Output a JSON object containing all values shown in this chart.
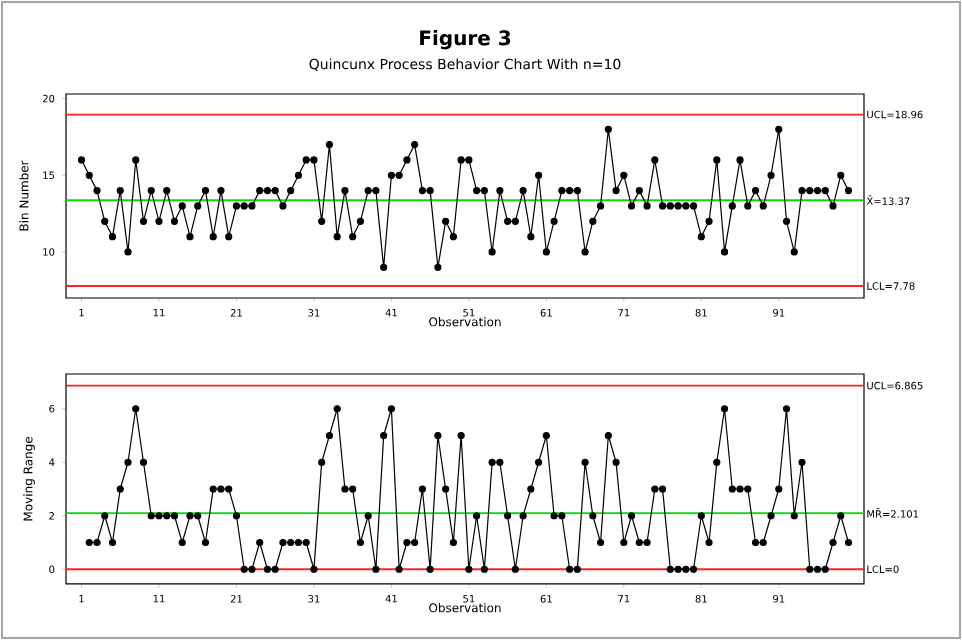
{
  "chart_data": [
    {
      "type": "line",
      "title": "Figure 3",
      "subtitle": "Quincunx Process Behavior Chart With n=10",
      "xlabel": "Observation",
      "ylabel": "Bin Number",
      "x": [
        1,
        2,
        3,
        4,
        5,
        6,
        7,
        8,
        9,
        10,
        11,
        12,
        13,
        14,
        15,
        16,
        17,
        18,
        19,
        20,
        21,
        22,
        23,
        24,
        25,
        26,
        27,
        28,
        29,
        30,
        31,
        32,
        33,
        34,
        35,
        36,
        37,
        38,
        39,
        40,
        41,
        42,
        43,
        44,
        45,
        46,
        47,
        48,
        49,
        50,
        51,
        52,
        53,
        54,
        55,
        56,
        57,
        58,
        59,
        60,
        61,
        62,
        63,
        64,
        65,
        66,
        67,
        68,
        69,
        70,
        71,
        72,
        73,
        74,
        75,
        76,
        77,
        78,
        79,
        80,
        81,
        82,
        83,
        84,
        85,
        86,
        87,
        88,
        89,
        90,
        91,
        92,
        93,
        94,
        95,
        96,
        97,
        98,
        99,
        100
      ],
      "values": [
        16,
        15,
        14,
        12,
        11,
        14,
        10,
        16,
        12,
        14,
        12,
        14,
        12,
        13,
        11,
        13,
        14,
        11,
        14,
        11,
        13,
        13,
        13,
        14,
        14,
        14,
        13,
        14,
        15,
        16,
        16,
        12,
        17,
        11,
        14,
        11,
        12,
        14,
        14,
        9,
        15,
        15,
        16,
        17,
        14,
        14,
        9,
        12,
        11,
        16,
        16,
        14,
        14,
        10,
        14,
        12,
        12,
        14,
        11,
        15,
        10,
        12,
        14,
        14,
        14,
        10,
        12,
        13,
        18,
        14,
        15,
        13,
        14,
        13,
        16,
        13,
        13,
        13,
        13,
        13,
        11,
        12,
        16,
        10,
        13,
        16,
        13,
        14,
        13,
        15,
        18,
        12,
        10,
        14,
        14,
        14,
        14,
        13,
        15,
        14
      ],
      "color": "#000000",
      "marker": "circle",
      "line_style": "solid",
      "xlim": [
        -1,
        102
      ],
      "ylim": [
        7,
        20.3
      ],
      "xticks": [
        1,
        11,
        21,
        31,
        41,
        51,
        61,
        71,
        81,
        91
      ],
      "yticks": [
        10,
        15,
        20
      ],
      "ref_lines": [
        {
          "axis": "y",
          "value": 18.96,
          "label": "UCL=18.96",
          "color": "#ff2020"
        },
        {
          "axis": "y",
          "value": 13.37,
          "label": "X̄=13.37",
          "color": "#00e000"
        },
        {
          "axis": "y",
          "value": 7.78,
          "label": "LCL=7.78",
          "color": "#ff2020"
        }
      ]
    },
    {
      "type": "line",
      "xlabel": "Observation",
      "ylabel": "Moving Range",
      "x": [
        2,
        3,
        4,
        5,
        6,
        7,
        8,
        9,
        10,
        11,
        12,
        13,
        14,
        15,
        16,
        17,
        18,
        19,
        20,
        21,
        22,
        23,
        24,
        25,
        26,
        27,
        28,
        29,
        30,
        31,
        32,
        33,
        34,
        35,
        36,
        37,
        38,
        39,
        40,
        41,
        42,
        43,
        44,
        45,
        46,
        47,
        48,
        49,
        50,
        51,
        52,
        53,
        54,
        55,
        56,
        57,
        58,
        59,
        60,
        61,
        62,
        63,
        64,
        65,
        66,
        67,
        68,
        69,
        70,
        71,
        72,
        73,
        74,
        75,
        76,
        77,
        78,
        79,
        80,
        81,
        82,
        83,
        84,
        85,
        86,
        87,
        88,
        89,
        90,
        91,
        92,
        93,
        94,
        95,
        96,
        97,
        98,
        99,
        100
      ],
      "values": [
        1,
        1,
        2,
        1,
        3,
        4,
        6,
        4,
        2,
        2,
        2,
        2,
        1,
        2,
        2,
        1,
        3,
        3,
        3,
        2,
        0,
        0,
        1,
        0,
        0,
        1,
        1,
        1,
        1,
        0,
        4,
        5,
        6,
        3,
        3,
        1,
        2,
        0,
        5,
        6,
        0,
        1,
        1,
        3,
        0,
        5,
        3,
        1,
        5,
        0,
        2,
        0,
        4,
        4,
        2,
        0,
        2,
        3,
        4,
        5,
        2,
        2,
        0,
        0,
        4,
        2,
        1,
        5,
        4,
        1,
        2,
        1,
        1,
        3,
        3,
        0,
        0,
        0,
        0,
        2,
        1,
        4,
        6,
        3,
        3,
        3,
        1,
        1,
        2,
        3,
        6,
        2,
        4,
        0,
        0,
        0,
        1,
        2,
        1
      ],
      "color": "#000000",
      "marker": "circle",
      "line_style": "solid",
      "xlim": [
        -1,
        102
      ],
      "ylim": [
        -0.55,
        7.3
      ],
      "xticks": [
        1,
        11,
        21,
        31,
        41,
        51,
        61,
        71,
        81,
        91
      ],
      "yticks": [
        0,
        2,
        4,
        6
      ],
      "ref_lines": [
        {
          "axis": "y",
          "value": 6.865,
          "label": "UCL=6.865",
          "color": "#ff2020"
        },
        {
          "axis": "y",
          "value": 2.101,
          "label": "MR̄=2.101",
          "color": "#00e000"
        },
        {
          "axis": "y",
          "value": 0,
          "label": "LCL=0",
          "color": "#ff2020"
        }
      ]
    }
  ]
}
